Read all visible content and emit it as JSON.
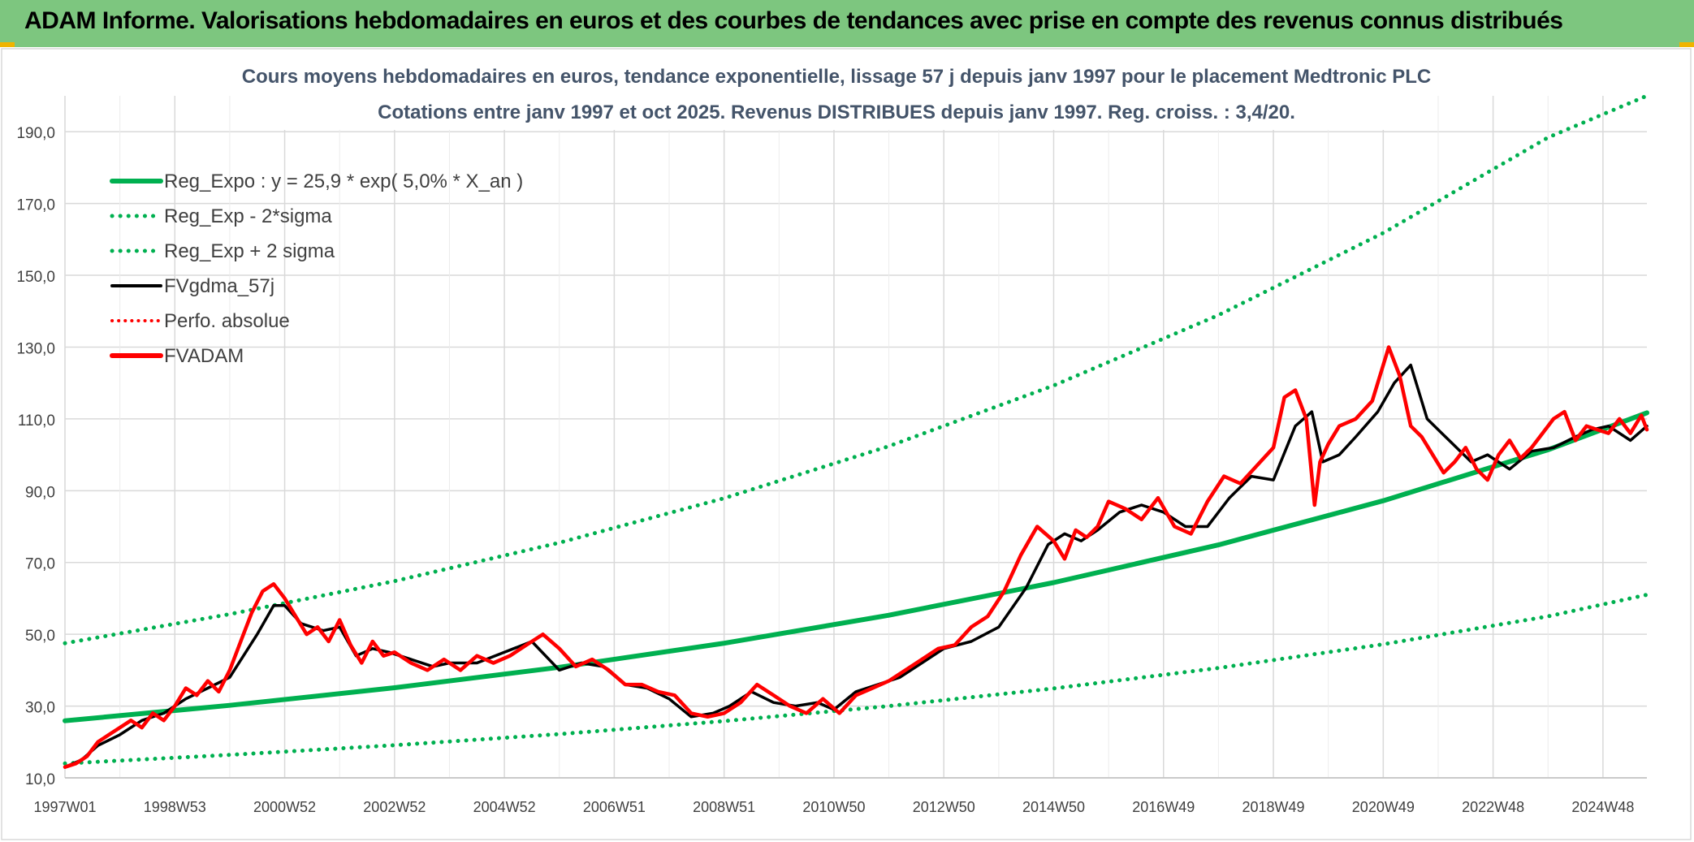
{
  "banner": {
    "title": "ADAM Informe. Valorisations hebdomadaires en euros et des courbes de tendances avec prise en compte des revenus connus distribués",
    "bg_color": "#7dc67f"
  },
  "chart_data": {
    "type": "line",
    "title": "Cours moyens hebdomadaires en euros, tendance exponentielle, lissage 57 j depuis janv 1997 pour le placement Medtronic PLC",
    "subtitle": "Cotations entre janv 1997 et oct 2025. Revenus DISTRIBUES depuis janv 1997. Reg. croiss. : 3,4/20.",
    "xlabel": "",
    "ylabel": "",
    "ylim": [
      10,
      200
    ],
    "xlim": [
      1997.0,
      2025.8
    ],
    "grid": true,
    "legend_position": "top-left",
    "y_ticks": [
      "10,0",
      "30,0",
      "50,0",
      "70,0",
      "90,0",
      "110,0",
      "130,0",
      "150,0",
      "170,0",
      "190,0"
    ],
    "y_tick_values": [
      10,
      30,
      50,
      70,
      90,
      110,
      130,
      150,
      170,
      190
    ],
    "x_tick_labels": [
      "1997W01",
      "1998W53",
      "2000W52",
      "2002W52",
      "2004W52",
      "2006W51",
      "2008W51",
      "2010W50",
      "2012W50",
      "2014W50",
      "2016W49",
      "2018W49",
      "2020W49",
      "2022W48",
      "2024W48"
    ],
    "x_tick_years": [
      1997.0,
      1999.0,
      2001.0,
      2003.0,
      2005.0,
      2007.0,
      2009.0,
      2011.0,
      2013.0,
      2015.0,
      2017.0,
      2019.0,
      2021.0,
      2023.0,
      2025.0
    ],
    "series": [
      {
        "name": "Reg_Expo : y = 25,9 * exp( 5,0% *  X_an )",
        "style": "solid-thick",
        "color": "#00b050",
        "x": [
          1997,
          2000,
          2003,
          2006,
          2009,
          2012,
          2015,
          2018,
          2021,
          2024,
          2025.8
        ],
        "values": [
          25.9,
          30.2,
          35.1,
          40.8,
          47.5,
          55.3,
          64.4,
          74.9,
          87.2,
          101.4,
          111.7
        ]
      },
      {
        "name": "Reg_Exp - 2*sigma",
        "style": "dotted",
        "color": "#00b050",
        "x": [
          1997,
          2000,
          2003,
          2006,
          2009,
          2012,
          2015,
          2018,
          2021,
          2024,
          2025.8
        ],
        "values": [
          14.0,
          16.4,
          19.1,
          22.2,
          25.8,
          30.0,
          34.9,
          40.6,
          47.2,
          55.0,
          61.0
        ]
      },
      {
        "name": "Reg_Exp + 2 sigma",
        "style": "dotted",
        "color": "#00b050",
        "x": [
          1997,
          2000,
          2003,
          2006,
          2009,
          2012,
          2015,
          2018,
          2021,
          2024,
          2025.8
        ],
        "values": [
          47.5,
          55.6,
          64.8,
          75.5,
          87.9,
          102.4,
          119.3,
          138.9,
          161.8,
          188.4,
          200.0
        ]
      },
      {
        "name": "FVgdma_57j",
        "style": "solid",
        "color": "#000000",
        "x": [
          1997.0,
          1997.3,
          1997.6,
          1998.0,
          1998.4,
          1998.8,
          1999.2,
          1999.6,
          2000.0,
          2000.5,
          2000.8,
          2001.0,
          2001.3,
          2001.7,
          2002.0,
          2002.3,
          2002.6,
          2002.9,
          2003.3,
          2003.7,
          2004.0,
          2004.5,
          2005.0,
          2005.5,
          2006.0,
          2006.4,
          2006.8,
          2007.2,
          2007.6,
          2008.0,
          2008.4,
          2008.8,
          2009.1,
          2009.5,
          2009.9,
          2010.3,
          2010.7,
          2011.0,
          2011.4,
          2011.8,
          2012.2,
          2012.6,
          2013.0,
          2013.5,
          2014.0,
          2014.5,
          2014.9,
          2015.2,
          2015.5,
          2015.8,
          2016.2,
          2016.6,
          2017.0,
          2017.4,
          2017.8,
          2018.2,
          2018.6,
          2019.0,
          2019.4,
          2019.7,
          2019.9,
          2020.2,
          2020.5,
          2020.9,
          2021.2,
          2021.5,
          2021.8,
          2022.2,
          2022.6,
          2022.9,
          2023.3,
          2023.7,
          2024.1,
          2024.5,
          2024.8,
          2025.1,
          2025.5,
          2025.8
        ],
        "values": [
          13,
          15,
          19,
          22,
          26,
          28,
          32,
          35,
          38,
          50,
          58,
          58,
          53,
          51,
          52,
          44,
          46,
          45,
          43,
          41,
          42,
          42,
          45,
          48,
          40,
          42,
          41,
          36,
          35,
          32,
          27,
          28,
          30,
          34,
          31,
          30,
          31,
          29,
          34,
          36,
          38,
          42,
          46,
          48,
          52,
          63,
          75,
          78,
          76,
          79,
          84,
          86,
          84,
          80,
          80,
          88,
          94,
          93,
          108,
          112,
          98,
          100,
          105,
          112,
          120,
          125,
          110,
          104,
          98,
          100,
          96,
          101,
          102,
          105,
          107,
          108,
          104,
          108
        ]
      },
      {
        "name": "Perfo. absolue",
        "style": "dotted",
        "color": "#ff0000",
        "x": [],
        "values": []
      },
      {
        "name": "FVADAM",
        "style": "solid-thick",
        "color": "#ff0000",
        "x": [
          1997.0,
          1997.2,
          1997.4,
          1997.6,
          1997.8,
          1998.0,
          1998.2,
          1998.4,
          1998.6,
          1998.8,
          1999.0,
          1999.2,
          1999.4,
          1999.6,
          1999.8,
          2000.0,
          2000.2,
          2000.4,
          2000.6,
          2000.8,
          2001.0,
          2001.2,
          2001.4,
          2001.6,
          2001.8,
          2002.0,
          2002.2,
          2002.4,
          2002.6,
          2002.8,
          2003.0,
          2003.3,
          2003.6,
          2003.9,
          2004.2,
          2004.5,
          2004.8,
          2005.1,
          2005.4,
          2005.7,
          2006.0,
          2006.3,
          2006.6,
          2006.9,
          2007.2,
          2007.5,
          2007.8,
          2008.1,
          2008.4,
          2008.7,
          2009.0,
          2009.3,
          2009.6,
          2009.9,
          2010.2,
          2010.5,
          2010.8,
          2011.1,
          2011.4,
          2011.7,
          2012.0,
          2012.3,
          2012.6,
          2012.9,
          2013.2,
          2013.5,
          2013.8,
          2014.1,
          2014.4,
          2014.7,
          2015.0,
          2015.2,
          2015.4,
          2015.6,
          2015.8,
          2016.0,
          2016.3,
          2016.6,
          2016.9,
          2017.2,
          2017.5,
          2017.8,
          2018.1,
          2018.4,
          2018.7,
          2019.0,
          2019.2,
          2019.4,
          2019.6,
          2019.75,
          2019.85,
          2020.0,
          2020.2,
          2020.5,
          2020.8,
          2021.1,
          2021.3,
          2021.5,
          2021.7,
          2021.9,
          2022.1,
          2022.3,
          2022.5,
          2022.7,
          2022.9,
          2023.1,
          2023.3,
          2023.5,
          2023.7,
          2023.9,
          2024.1,
          2024.3,
          2024.5,
          2024.7,
          2024.9,
          2025.1,
          2025.3,
          2025.5,
          2025.7,
          2025.8
        ],
        "values": [
          13,
          14,
          16,
          20,
          22,
          24,
          26,
          24,
          28,
          26,
          30,
          35,
          33,
          37,
          34,
          40,
          48,
          56,
          62,
          64,
          60,
          55,
          50,
          52,
          48,
          54,
          47,
          42,
          48,
          44,
          45,
          42,
          40,
          43,
          40,
          44,
          42,
          44,
          47,
          50,
          46,
          41,
          43,
          40,
          36,
          36,
          34,
          33,
          28,
          27,
          28,
          31,
          36,
          33,
          30,
          28,
          32,
          28,
          33,
          35,
          37,
          40,
          43,
          46,
          47,
          52,
          55,
          62,
          72,
          80,
          76,
          71,
          79,
          77,
          80,
          87,
          85,
          82,
          88,
          80,
          78,
          87,
          94,
          92,
          97,
          102,
          116,
          118,
          110,
          86,
          98,
          103,
          108,
          110,
          115,
          130,
          122,
          108,
          105,
          100,
          95,
          98,
          102,
          96,
          93,
          100,
          104,
          99,
          102,
          106,
          110,
          112,
          104,
          108,
          107,
          106,
          110,
          106,
          111,
          107
        ]
      }
    ]
  }
}
